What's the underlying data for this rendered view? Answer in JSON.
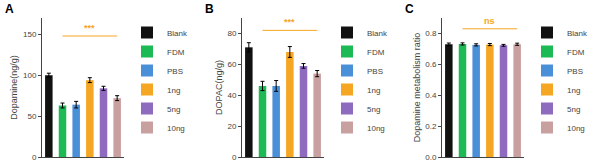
{
  "chart_data": [
    {
      "type": "bar",
      "title": "A",
      "ylabel": "Dopamine(ng/g)",
      "categories": [
        "Blank",
        "FDM",
        "PBS",
        "1ng",
        "5ng",
        "10ng"
      ],
      "values": [
        100,
        63,
        64,
        94,
        84,
        72
      ],
      "errors": [
        2.5,
        3.0,
        4.0,
        3.0,
        2.5,
        3.0
      ],
      "colors": [
        "#111111",
        "#1db954",
        "#4a90d9",
        "#f5a623",
        "#8e6bbf",
        "#c9a0a0"
      ],
      "ylim": [
        0,
        170
      ],
      "yticks": [
        0,
        50,
        100,
        150
      ],
      "grid": false,
      "legend": "right",
      "tick_labels": "y",
      "annotations": [
        {
          "text": "***",
          "from": "FDM",
          "to": "10ng",
          "y": 148,
          "text_y": 149,
          "color": "#f5a623"
        }
      ]
    },
    {
      "type": "bar",
      "title": "B",
      "ylabel": "DOPAC(ng/g)",
      "categories": [
        "Blank",
        "FDM",
        "PBS",
        "1ng",
        "5ng",
        "10ng"
      ],
      "values": [
        71,
        46,
        46,
        68,
        59,
        54
      ],
      "errors": [
        3.0,
        3.0,
        3.5,
        3.5,
        1.5,
        2.0
      ],
      "colors": [
        "#111111",
        "#1db954",
        "#4a90d9",
        "#f5a623",
        "#8e6bbf",
        "#c9a0a0"
      ],
      "ylim": [
        0,
        90
      ],
      "yticks": [
        0,
        20,
        40,
        60,
        80
      ],
      "grid": false,
      "legend": "right",
      "tick_labels": "y",
      "annotations": [
        {
          "text": "***",
          "from": "FDM",
          "to": "10ng",
          "y": 82,
          "text_y": 83,
          "color": "#f5a623"
        }
      ]
    },
    {
      "type": "bar",
      "title": "C",
      "ylabel": "Dopamine metabolism ratio",
      "categories": [
        "Blank",
        "FDM",
        "PBS",
        "1ng",
        "5ng",
        "10ng"
      ],
      "values": [
        0.73,
        0.732,
        0.726,
        0.728,
        0.723,
        0.73
      ],
      "errors": [
        0.008,
        0.007,
        0.007,
        0.007,
        0.006,
        0.007
      ],
      "colors": [
        "#111111",
        "#1db954",
        "#4a90d9",
        "#f5a623",
        "#8e6bbf",
        "#c9a0a0"
      ],
      "ylim": [
        0.0,
        0.9
      ],
      "yticks": [
        {
          "value": 0.0,
          "label": "0.0"
        },
        0.2,
        0.4,
        0.6,
        0.8
      ],
      "grid": false,
      "legend": "right",
      "tick_labels": "y",
      "annotations": [
        {
          "text": "ns",
          "from": "FDM",
          "to": "10ng",
          "y": 0.83,
          "text_y": 0.835,
          "color": "#f5a623"
        }
      ]
    }
  ]
}
